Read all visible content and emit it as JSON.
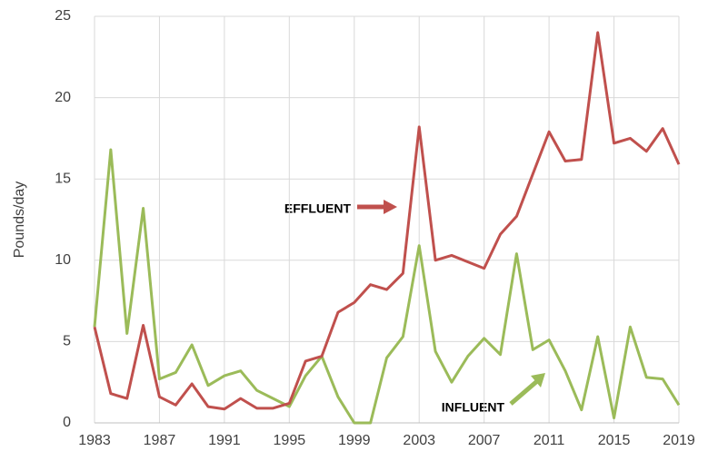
{
  "chart_data": {
    "type": "line",
    "y_label": "Pounds/day",
    "x": [
      1983,
      1984,
      1985,
      1986,
      1987,
      1988,
      1989,
      1990,
      1991,
      1992,
      1993,
      1994,
      1995,
      1996,
      1997,
      1998,
      1999,
      2000,
      2001,
      2002,
      2003,
      2004,
      2005,
      2006,
      2007,
      2008,
      2009,
      2010,
      2011,
      2012,
      2013,
      2014,
      2015,
      2016,
      2017,
      2018,
      2019
    ],
    "series": [
      {
        "name": "EFFLUENT",
        "color": "#c0504d",
        "values": [
          5.9,
          1.8,
          1.5,
          6.0,
          1.6,
          1.1,
          2.4,
          1.0,
          0.85,
          1.5,
          0.9,
          0.9,
          1.2,
          3.8,
          4.1,
          6.8,
          7.4,
          8.5,
          8.2,
          9.2,
          18.2,
          10.0,
          10.3,
          9.9,
          9.5,
          11.6,
          12.7,
          15.3,
          17.9,
          16.1,
          16.2,
          24.0,
          17.2,
          17.5,
          16.7,
          18.1,
          15.9
        ]
      },
      {
        "name": "INFLUENT",
        "color": "#9bbb59",
        "values": [
          5.9,
          16.8,
          5.5,
          13.2,
          2.7,
          3.1,
          4.8,
          2.3,
          2.9,
          3.2,
          2.0,
          1.5,
          1.0,
          2.9,
          4.1,
          1.6,
          0.0,
          0.0,
          4.0,
          5.3,
          10.9,
          4.4,
          2.5,
          4.1,
          5.2,
          4.2,
          10.4,
          4.5,
          5.1,
          3.2,
          0.8,
          5.3,
          0.3,
          5.9,
          2.8,
          2.7,
          1.1
        ]
      }
    ],
    "xlim": [
      1983,
      2019
    ],
    "xticks": [
      1983,
      1987,
      1991,
      1995,
      1999,
      2003,
      2007,
      2011,
      2015,
      2019
    ],
    "ylim": [
      0,
      25
    ],
    "yticks": [
      0,
      5,
      10,
      15,
      20,
      25
    ],
    "grid": true
  }
}
